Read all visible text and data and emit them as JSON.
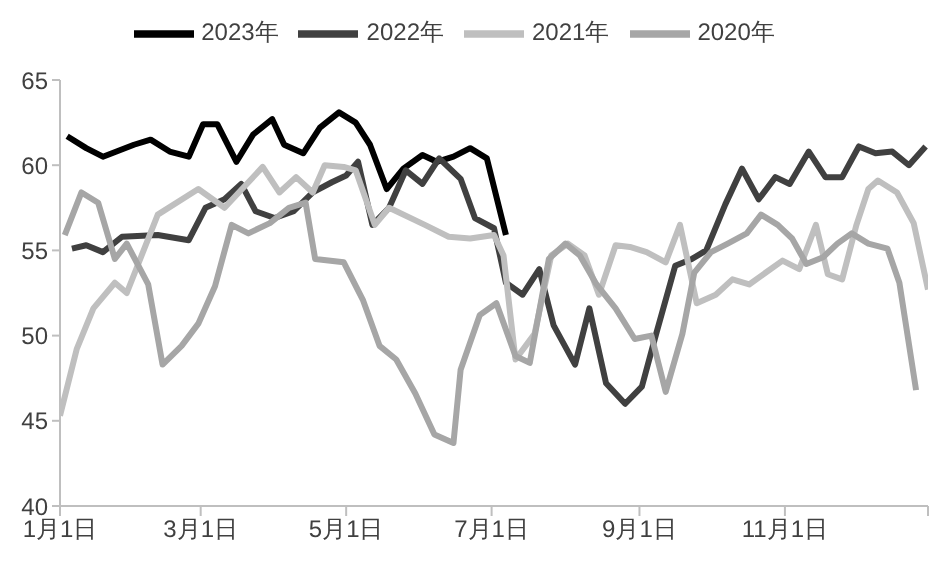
{
  "chart_data": {
    "type": "line",
    "legend": "top",
    "xlim": [
      "--01-01",
      "--12-31"
    ],
    "xticks": [
      {
        "value": "--01-01",
        "label": "1月1日"
      },
      {
        "value": "--03-01",
        "label": "3月1日"
      },
      {
        "value": "--05-01",
        "label": "5月1日"
      },
      {
        "value": "--07-01",
        "label": "7月1日"
      },
      {
        "value": "--09-01",
        "label": "9月1日"
      },
      {
        "value": "--11-01",
        "label": "11月1日"
      },
      {
        "value": "--12-31",
        "label": null
      }
    ],
    "ylim": [
      40,
      65
    ],
    "yticks": [
      40,
      45,
      50,
      55,
      60,
      65
    ],
    "series": [
      {
        "name": "2023年",
        "color": "#000000",
        "x": [
          "--01-04",
          "--01-12",
          "--01-19",
          "--02-01",
          "--02-08",
          "--02-16",
          "--02-24",
          "--03-02",
          "--03-08",
          "--03-16",
          "--03-23",
          "--03-31",
          "--04-05",
          "--04-13",
          "--04-20",
          "--04-28",
          "--05-05",
          "--05-11",
          "--05-18",
          "--05-25",
          "--06-02",
          "--06-08",
          "--06-15",
          "--06-22",
          "--06-29",
          "--07-07"
        ],
        "values": [
          61.7,
          61.0,
          60.5,
          61.2,
          61.5,
          60.8,
          60.5,
          62.4,
          62.4,
          60.2,
          61.8,
          62.7,
          61.2,
          60.7,
          62.2,
          63.1,
          62.5,
          61.2,
          58.6,
          59.8,
          60.6,
          60.2,
          60.5,
          61.0,
          60.4,
          55.9
        ]
      },
      {
        "name": "2022年",
        "color": "#404040",
        "x": [
          "--01-06",
          "--01-12",
          "--01-19",
          "--01-27",
          "--02-11",
          "--02-24",
          "--03-03",
          "--03-11",
          "--03-18",
          "--03-24",
          "--04-01",
          "--04-09",
          "--04-17",
          "--04-25",
          "--05-01",
          "--05-06",
          "--05-12",
          "--05-19",
          "--05-26",
          "--06-02",
          "--06-09",
          "--06-18",
          "--06-24",
          "--07-02",
          "--07-07",
          "--07-14",
          "--07-21",
          "--07-27",
          "--08-05",
          "--08-11",
          "--08-18",
          "--08-26",
          "--09-02",
          "--09-08",
          "--09-16",
          "--09-23",
          "--09-29",
          "--10-07",
          "--10-14",
          "--10-21",
          "--10-28",
          "--11-03",
          "--11-11",
          "--11-18",
          "--11-25",
          "--12-02",
          "--12-09",
          "--12-16",
          "--12-23",
          "--12-30"
        ],
        "values": [
          55.1,
          55.3,
          54.9,
          55.8,
          55.9,
          55.6,
          57.5,
          58.0,
          58.9,
          57.3,
          56.9,
          57.3,
          58.4,
          59.0,
          59.4,
          60.2,
          56.5,
          57.5,
          59.7,
          58.9,
          60.4,
          59.2,
          56.9,
          56.3,
          53.1,
          52.4,
          53.9,
          50.6,
          48.3,
          51.6,
          47.2,
          46.0,
          47.0,
          50.1,
          54.1,
          54.5,
          55.0,
          57.7,
          59.8,
          58.0,
          59.3,
          58.9,
          60.8,
          59.3,
          59.3,
          61.1,
          60.7,
          60.8,
          60.0,
          61.1
        ]
      },
      {
        "name": "2021年",
        "color": "#bfbfbf",
        "x": [
          "--01-01",
          "--01-08",
          "--01-15",
          "--01-24",
          "--01-29",
          "--02-11",
          "--02-28",
          "--03-11",
          "--03-27",
          "--04-03",
          "--04-10",
          "--04-17",
          "--04-22",
          "--04-30",
          "--05-05",
          "--05-13",
          "--05-19",
          "--06-03",
          "--06-13",
          "--06-22",
          "--07-02",
          "--07-06",
          "--07-11",
          "--07-19",
          "--07-26",
          "--08-02",
          "--08-09",
          "--08-15",
          "--08-22",
          "--08-28",
          "--09-04",
          "--09-12",
          "--09-18",
          "--09-25",
          "--10-03",
          "--10-10",
          "--10-17",
          "--10-24",
          "--10-31",
          "--11-07",
          "--11-14",
          "--11-19",
          "--11-25",
          "--12-01",
          "--12-06",
          "--12-10",
          "--12-18",
          "--12-25",
          "--12-31"
        ],
        "values": [
          45.3,
          49.2,
          51.6,
          53.1,
          52.5,
          57.1,
          58.6,
          57.5,
          59.9,
          58.4,
          59.3,
          58.4,
          60.0,
          59.9,
          59.7,
          56.5,
          57.5,
          56.5,
          55.8,
          55.7,
          55.9,
          54.7,
          48.6,
          50.1,
          54.7,
          55.4,
          54.7,
          52.4,
          55.3,
          55.2,
          54.9,
          54.3,
          56.5,
          51.9,
          52.4,
          53.3,
          53.0,
          53.7,
          54.4,
          53.9,
          56.5,
          53.6,
          53.3,
          56.5,
          58.6,
          59.1,
          58.4,
          56.6,
          52.7
        ]
      },
      {
        "name": "2020年",
        "color": "#a6a6a6",
        "x": [
          "--01-03",
          "--01-10",
          "--01-17",
          "--01-24",
          "--01-29",
          "--02-07",
          "--02-13",
          "--02-21",
          "--02-28",
          "--03-07",
          "--03-14",
          "--03-21",
          "--03-30",
          "--04-07",
          "--04-14",
          "--04-18",
          "--04-30",
          "--05-08",
          "--05-15",
          "--05-22",
          "--05-30",
          "--06-07",
          "--06-15",
          "--06-18",
          "--06-26",
          "--07-03",
          "--07-11",
          "--07-17",
          "--07-25",
          "--08-01",
          "--08-07",
          "--08-14",
          "--08-22",
          "--08-30",
          "--09-06",
          "--09-12",
          "--09-19",
          "--09-24",
          "--10-01",
          "--10-08",
          "--10-16",
          "--10-22",
          "--10-29",
          "--11-04",
          "--11-10",
          "--11-17",
          "--11-23",
          "--11-29",
          "--12-06",
          "--12-14",
          "--12-19",
          "--12-26"
        ],
        "values": [
          55.9,
          58.4,
          57.8,
          54.5,
          55.4,
          53.0,
          48.3,
          49.4,
          50.7,
          52.9,
          56.5,
          56.0,
          56.6,
          57.5,
          57.8,
          54.5,
          54.3,
          52.1,
          49.4,
          48.6,
          46.6,
          44.2,
          43.7,
          48.0,
          51.2,
          51.9,
          48.8,
          48.4,
          54.5,
          55.4,
          54.7,
          53.0,
          51.6,
          49.8,
          50.0,
          46.7,
          50.1,
          53.7,
          54.9,
          55.4,
          56.0,
          57.1,
          56.5,
          55.7,
          54.2,
          54.6,
          55.4,
          56.0,
          55.4,
          55.1,
          53.1,
          46.8
        ]
      }
    ]
  }
}
